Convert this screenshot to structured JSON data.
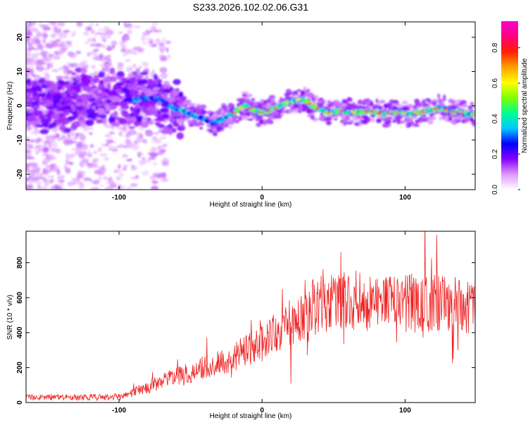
{
  "title": "S233.2026.102.02.06.G31",
  "chart_data": [
    {
      "type": "heatmap",
      "xlabel": "Height of straight line (km)",
      "ylabel": "Frequency (Hz)",
      "xlim": [
        -165,
        149
      ],
      "ylim": [
        -24.5,
        24.5
      ],
      "xticks": [
        -100,
        0,
        100
      ],
      "xtick_labels": [
        "-100",
        "0",
        "100"
      ],
      "yticks": [
        -20,
        -10,
        0,
        10,
        20
      ],
      "ytick_labels": [
        "-20",
        "-10",
        "0",
        "10",
        "20"
      ],
      "ridge_x": [
        -165,
        -150,
        -130,
        -110,
        -95,
        -85,
        -78,
        -70,
        -62,
        -55,
        -48,
        -42,
        -35,
        -28,
        -20,
        -12,
        -5,
        0,
        8,
        15,
        22,
        28,
        35,
        45,
        55,
        65,
        75,
        85,
        95,
        105,
        115,
        125,
        135,
        145
      ],
      "ridge_y": [
        0.5,
        1,
        1.5,
        2.5,
        1.5,
        2,
        2.5,
        1.5,
        -1,
        -1.5,
        -3,
        -3.5,
        -5,
        -4,
        -2,
        0,
        -1.5,
        -2,
        -1,
        0.5,
        1.5,
        2,
        0,
        -2,
        -1.5,
        -2,
        -1.5,
        -2.5,
        -2,
        -2.5,
        -1.5,
        -0.5,
        -2,
        -2.5
      ],
      "colorbar": {
        "label": "Normalized spectral amplitude",
        "range": [
          0,
          0.95
        ],
        "ticks": [
          0.0,
          0.2,
          0.4,
          0.6,
          0.8
        ],
        "tick_labels": [
          "0.0",
          "0.2",
          "0.4",
          "0.6",
          "0.8"
        ],
        "colors": [
          "#ffffff",
          "#dd99ff",
          "#8800ff",
          "#0000ff",
          "#00c8ff",
          "#00ff90",
          "#7fff00",
          "#ffff00",
          "#ffa000",
          "#ff2000",
          "#ff0080",
          "#ff00cc"
        ]
      }
    },
    {
      "type": "line",
      "xlabel": "Height of straight line (km)",
      "ylabel": "SNR (10 * v/v)",
      "xlim": [
        -165,
        149
      ],
      "ylim": [
        0,
        980
      ],
      "xticks": [
        -100,
        0,
        100
      ],
      "xtick_labels": [
        "-100",
        "0",
        "100"
      ],
      "yticks": [
        0,
        200,
        400,
        600,
        800
      ],
      "ytick_labels": [
        "0",
        "200",
        "400",
        "600",
        "800"
      ],
      "color": "#ee2222",
      "envelope": {
        "x": [
          -165,
          -100,
          -90,
          -80,
          -70,
          -60,
          -50,
          -40,
          -30,
          -20,
          -10,
          0,
          10,
          20,
          30,
          40,
          50,
          60,
          80,
          100,
          120,
          140,
          149
        ],
        "y": [
          30,
          30,
          60,
          90,
          120,
          150,
          170,
          200,
          230,
          260,
          300,
          340,
          400,
          460,
          520,
          560,
          580,
          575,
          575,
          570,
          565,
          560,
          560
        ]
      }
    }
  ]
}
